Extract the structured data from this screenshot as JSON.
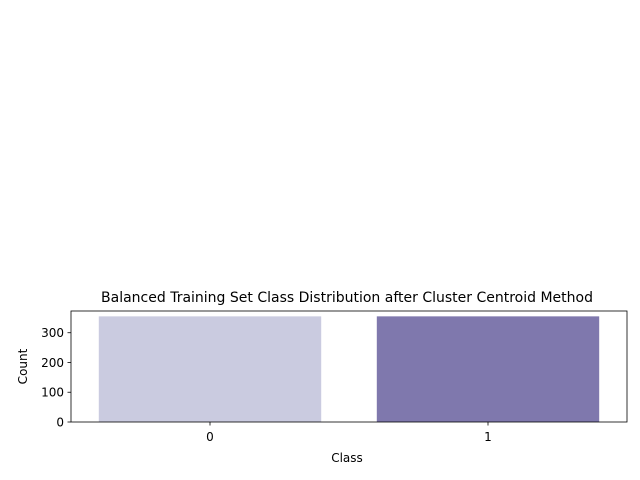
{
  "chart_data": {
    "type": "bar",
    "title": "Balanced Training Set Class Distribution after Cluster Centroid Method",
    "xlabel": "Class",
    "ylabel": "Count",
    "categories": [
      "0",
      "1"
    ],
    "values": [
      355,
      355
    ],
    "colors": [
      "#cacbe0",
      "#7f78ad"
    ],
    "ylim": [
      0,
      373
    ],
    "yticks": [
      0,
      100,
      200,
      300
    ],
    "grid": false,
    "legend": "none"
  }
}
